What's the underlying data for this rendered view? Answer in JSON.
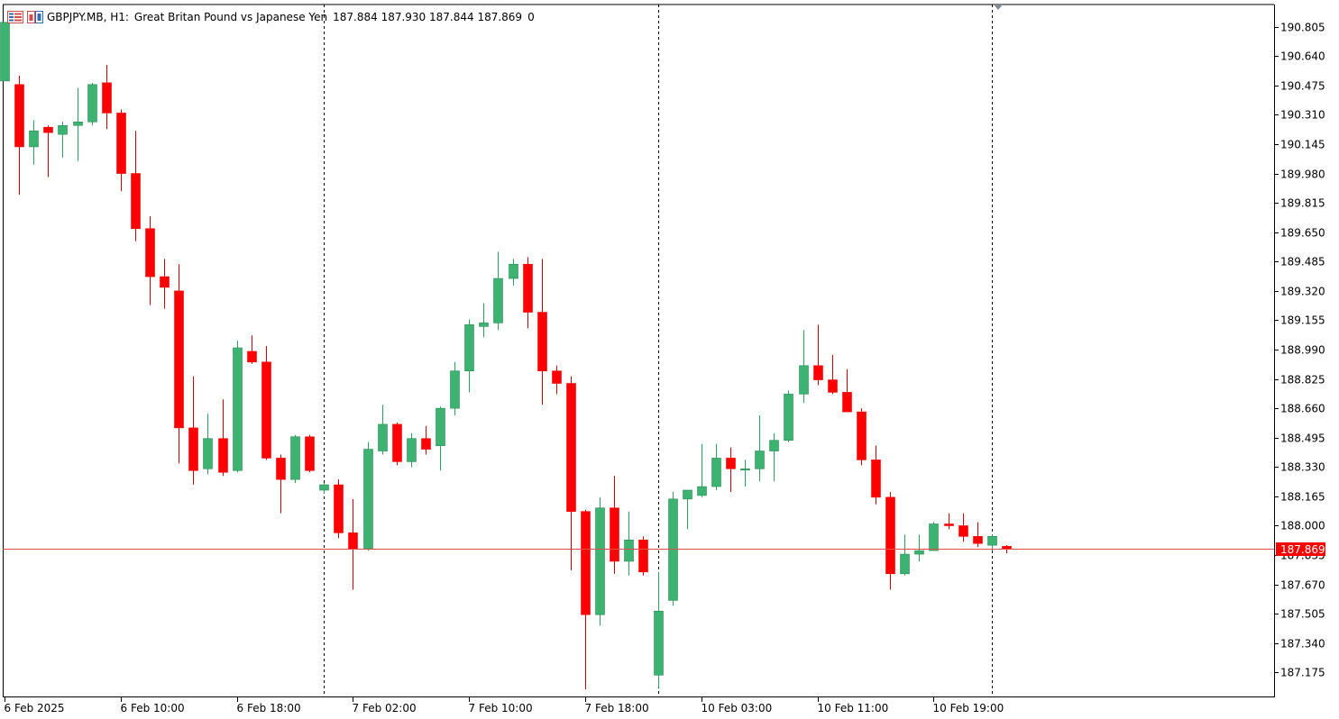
{
  "header": {
    "symbol": "GBPJPY.MB, H1:",
    "description": "Great Britan Pound vs Japanese Yen",
    "ohlc": "187.884 187.930 187.844 187.869",
    "extra": "0",
    "icons": [
      "chart-window-icon",
      "one-click-trading-icon"
    ]
  },
  "colors": {
    "bull": "#3cb371",
    "bear": "#ff0000",
    "wick_bull": "#26a65b",
    "wick_bear": "#d00000",
    "bid_line": "#e84a4a",
    "bid_badge": "#ff0000",
    "grid_separator": "#000000",
    "axis": "#000000"
  },
  "chart_data": {
    "type": "candlestick",
    "symbol": "GBPJPY.MB",
    "timeframe": "H1",
    "title": "Great Britan Pound vs Japanese Yen",
    "ylim": [
      187.04,
      190.93
    ],
    "price_ticks": [
      "190.805",
      "190.640",
      "190.475",
      "190.310",
      "190.145",
      "189.980",
      "189.815",
      "189.650",
      "189.485",
      "189.320",
      "189.155",
      "188.990",
      "188.825",
      "188.660",
      "188.495",
      "188.330",
      "188.165",
      "188.000",
      "187.835",
      "187.670",
      "187.505",
      "187.340",
      "187.175"
    ],
    "time_labels": [
      {
        "label": "6 Feb 2025",
        "index": 0
      },
      {
        "label": "6 Feb 10:00",
        "index": 8
      },
      {
        "label": "6 Feb 18:00",
        "index": 16
      },
      {
        "label": "7 Feb 02:00",
        "index": 24
      },
      {
        "label": "7 Feb 10:00",
        "index": 32
      },
      {
        "label": "7 Feb 18:00",
        "index": 40
      },
      {
        "label": "10 Feb 03:00",
        "index": 48
      },
      {
        "label": "10 Feb 11:00",
        "index": 56
      },
      {
        "label": "10 Feb 19:00",
        "index": 64
      }
    ],
    "day_separators": [
      22,
      45,
      68
    ],
    "current_price": "187.869",
    "candles": [
      {
        "o": 190.5,
        "h": 190.83,
        "l": 190.5,
        "c": 190.83
      },
      {
        "o": 190.48,
        "h": 190.53,
        "l": 189.86,
        "c": 190.13
      },
      {
        "o": 190.13,
        "h": 190.28,
        "l": 190.03,
        "c": 190.22
      },
      {
        "o": 190.24,
        "h": 190.25,
        "l": 189.96,
        "c": 190.21
      },
      {
        "o": 190.2,
        "h": 190.27,
        "l": 190.07,
        "c": 190.25
      },
      {
        "o": 190.25,
        "h": 190.46,
        "l": 190.05,
        "c": 190.27
      },
      {
        "o": 190.27,
        "h": 190.49,
        "l": 190.25,
        "c": 190.48
      },
      {
        "o": 190.49,
        "h": 190.59,
        "l": 190.23,
        "c": 190.32
      },
      {
        "o": 190.32,
        "h": 190.34,
        "l": 189.88,
        "c": 189.98
      },
      {
        "o": 189.98,
        "h": 190.22,
        "l": 189.6,
        "c": 189.67
      },
      {
        "o": 189.67,
        "h": 189.74,
        "l": 189.24,
        "c": 189.4
      },
      {
        "o": 189.4,
        "h": 189.5,
        "l": 189.22,
        "c": 189.34
      },
      {
        "o": 189.32,
        "h": 189.47,
        "l": 188.35,
        "c": 188.55
      },
      {
        "o": 188.55,
        "h": 188.84,
        "l": 188.23,
        "c": 188.31
      },
      {
        "o": 188.32,
        "h": 188.63,
        "l": 188.29,
        "c": 188.49
      },
      {
        "o": 188.49,
        "h": 188.71,
        "l": 188.28,
        "c": 188.3
      },
      {
        "o": 188.31,
        "h": 189.04,
        "l": 188.3,
        "c": 189.0
      },
      {
        "o": 188.98,
        "h": 189.07,
        "l": 188.91,
        "c": 188.92
      },
      {
        "o": 188.92,
        "h": 189.01,
        "l": 188.37,
        "c": 188.38
      },
      {
        "o": 188.38,
        "h": 188.4,
        "l": 188.07,
        "c": 188.26
      },
      {
        "o": 188.26,
        "h": 188.51,
        "l": 188.24,
        "c": 188.5
      },
      {
        "o": 188.5,
        "h": 188.51,
        "l": 188.3,
        "c": 188.31
      },
      {
        "o": 188.2,
        "h": 188.24,
        "l": 188.18,
        "c": 188.23
      },
      {
        "o": 188.23,
        "h": 188.26,
        "l": 187.93,
        "c": 187.96
      },
      {
        "o": 187.96,
        "h": 188.15,
        "l": 187.64,
        "c": 187.87
      },
      {
        "o": 187.87,
        "h": 188.47,
        "l": 187.86,
        "c": 188.43
      },
      {
        "o": 188.42,
        "h": 188.68,
        "l": 188.4,
        "c": 188.57
      },
      {
        "o": 188.57,
        "h": 188.58,
        "l": 188.34,
        "c": 188.36
      },
      {
        "o": 188.36,
        "h": 188.52,
        "l": 188.33,
        "c": 188.49
      },
      {
        "o": 188.49,
        "h": 188.56,
        "l": 188.4,
        "c": 188.43
      },
      {
        "o": 188.45,
        "h": 188.67,
        "l": 188.31,
        "c": 188.66
      },
      {
        "o": 188.66,
        "h": 188.92,
        "l": 188.62,
        "c": 188.87
      },
      {
        "o": 188.87,
        "h": 189.16,
        "l": 188.75,
        "c": 189.13
      },
      {
        "o": 189.12,
        "h": 189.25,
        "l": 189.06,
        "c": 189.14
      },
      {
        "o": 189.14,
        "h": 189.54,
        "l": 189.1,
        "c": 189.39
      },
      {
        "o": 189.39,
        "h": 189.5,
        "l": 189.35,
        "c": 189.47
      },
      {
        "o": 189.47,
        "h": 189.51,
        "l": 189.11,
        "c": 189.2
      },
      {
        "o": 189.2,
        "h": 189.5,
        "l": 188.68,
        "c": 188.87
      },
      {
        "o": 188.87,
        "h": 188.9,
        "l": 188.74,
        "c": 188.8
      },
      {
        "o": 188.8,
        "h": 188.84,
        "l": 187.75,
        "c": 188.08
      },
      {
        "o": 188.08,
        "h": 188.09,
        "l": 187.08,
        "c": 187.5
      },
      {
        "o": 187.5,
        "h": 188.16,
        "l": 187.44,
        "c": 188.1
      },
      {
        "o": 188.1,
        "h": 188.28,
        "l": 187.73,
        "c": 187.8
      },
      {
        "o": 187.8,
        "h": 188.08,
        "l": 187.72,
        "c": 187.92
      },
      {
        "o": 187.92,
        "h": 187.94,
        "l": 187.72,
        "c": 187.74
      },
      {
        "o": 187.16,
        "h": 187.74,
        "l": 187.09,
        "c": 187.52
      },
      {
        "o": 187.58,
        "h": 188.19,
        "l": 187.55,
        "c": 188.15
      },
      {
        "o": 188.15,
        "h": 188.2,
        "l": 187.98,
        "c": 188.2
      },
      {
        "o": 188.17,
        "h": 188.46,
        "l": 188.16,
        "c": 188.22
      },
      {
        "o": 188.22,
        "h": 188.46,
        "l": 188.2,
        "c": 188.38
      },
      {
        "o": 188.38,
        "h": 188.44,
        "l": 188.19,
        "c": 188.32
      },
      {
        "o": 188.32,
        "h": 188.37,
        "l": 188.22,
        "c": 188.32
      },
      {
        "o": 188.32,
        "h": 188.62,
        "l": 188.25,
        "c": 188.42
      },
      {
        "o": 188.42,
        "h": 188.52,
        "l": 188.25,
        "c": 188.48
      },
      {
        "o": 188.48,
        "h": 188.76,
        "l": 188.47,
        "c": 188.74
      },
      {
        "o": 188.74,
        "h": 189.1,
        "l": 188.69,
        "c": 188.9
      },
      {
        "o": 188.9,
        "h": 189.13,
        "l": 188.79,
        "c": 188.82
      },
      {
        "o": 188.82,
        "h": 188.96,
        "l": 188.74,
        "c": 188.75
      },
      {
        "o": 188.75,
        "h": 188.88,
        "l": 188.64,
        "c": 188.64
      },
      {
        "o": 188.64,
        "h": 188.66,
        "l": 188.34,
        "c": 188.37
      },
      {
        "o": 188.37,
        "h": 188.45,
        "l": 188.12,
        "c": 188.16
      },
      {
        "o": 188.16,
        "h": 188.19,
        "l": 187.64,
        "c": 187.73
      },
      {
        "o": 187.73,
        "h": 187.95,
        "l": 187.72,
        "c": 187.84
      },
      {
        "o": 187.84,
        "h": 187.95,
        "l": 187.8,
        "c": 187.86
      },
      {
        "o": 187.86,
        "h": 188.02,
        "l": 187.86,
        "c": 188.01
      },
      {
        "o": 188.01,
        "h": 188.07,
        "l": 187.98,
        "c": 188.0
      },
      {
        "o": 188.0,
        "h": 188.07,
        "l": 187.91,
        "c": 187.94
      },
      {
        "o": 187.94,
        "h": 188.02,
        "l": 187.88,
        "c": 187.9
      },
      {
        "o": 187.89,
        "h": 187.95,
        "l": 187.86,
        "c": 187.94
      },
      {
        "o": 187.884,
        "h": 187.89,
        "l": 187.844,
        "c": 187.869
      }
    ]
  }
}
